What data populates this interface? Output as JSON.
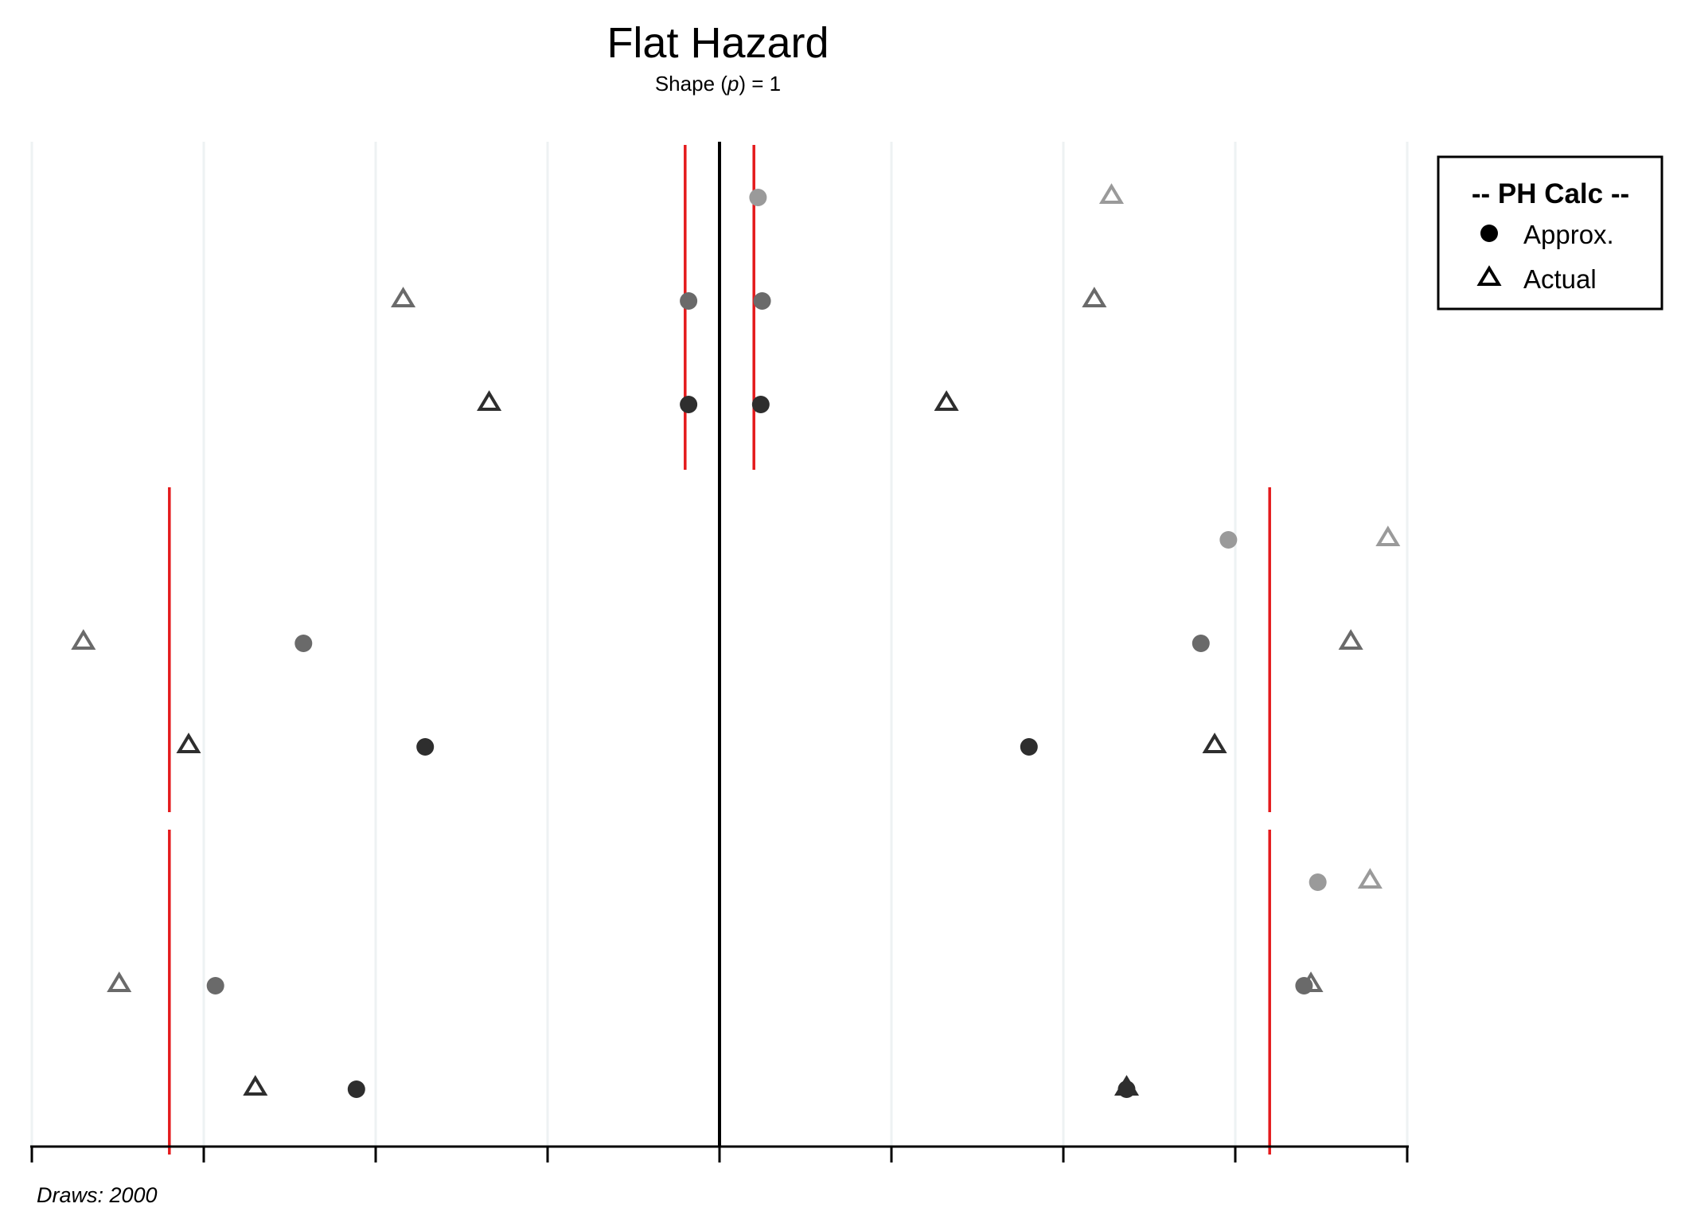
{
  "chart_data": {
    "type": "scatter",
    "title": "Flat Hazard",
    "subtitle_prefix": "Shape (",
    "subtitle_var": "p",
    "subtitle_suffix": ") = 1",
    "caption": "Draws: 2000",
    "xlim": [
      -1,
      1
    ],
    "x_ticks": [
      -1,
      -0.75,
      -0.5,
      -0.25,
      0,
      0.25,
      0.5,
      0.75,
      1
    ],
    "grid": "vertical",
    "reference_line_x": 0,
    "legend": {
      "position": "top-right",
      "title": "-- PH Calc --",
      "entries": [
        {
          "label": "Approx.",
          "shape": "circle"
        },
        {
          "label": "Actual",
          "shape": "triangle"
        }
      ]
    },
    "shade_colors": {
      "light": "#9a9a9a",
      "mid": "#6a6a6a",
      "dark": "#2e2e2e"
    },
    "reference_color": "#e41a1c",
    "panels": [
      {
        "red_lines": [
          -0.05,
          0.05
        ],
        "rows": [
          {
            "shade": "light",
            "approx": [
              0.056
            ],
            "actual": [
              0.57
            ]
          },
          {
            "shade": "mid",
            "approx": [
              -0.045,
              0.062
            ],
            "actual": [
              -0.46,
              0.545
            ]
          },
          {
            "shade": "dark",
            "approx": [
              -0.045,
              0.06
            ],
            "actual": [
              -0.335,
              0.33
            ]
          }
        ]
      },
      {
        "red_lines": [
          -0.8,
          0.8
        ],
        "rows": [
          {
            "shade": "light",
            "approx": [
              0.74
            ],
            "actual": [
              0.972
            ]
          },
          {
            "shade": "mid",
            "approx": [
              -0.605,
              0.7
            ],
            "actual": [
              -0.925,
              0.918
            ]
          },
          {
            "shade": "dark",
            "approx": [
              -0.428,
              0.45
            ],
            "actual": [
              -0.772,
              0.72
            ]
          }
        ]
      },
      {
        "red_lines": [
          -0.8,
          0.8
        ],
        "rows": [
          {
            "shade": "light",
            "approx": [
              0.87
            ],
            "actual": [
              0.946
            ]
          },
          {
            "shade": "mid",
            "approx": [
              -0.733,
              0.85
            ],
            "actual": [
              -0.873,
              0.86
            ]
          },
          {
            "shade": "dark",
            "approx": [
              -0.528,
              0.592
            ],
            "actual": [
              -0.675,
              0.592
            ]
          }
        ]
      }
    ]
  }
}
